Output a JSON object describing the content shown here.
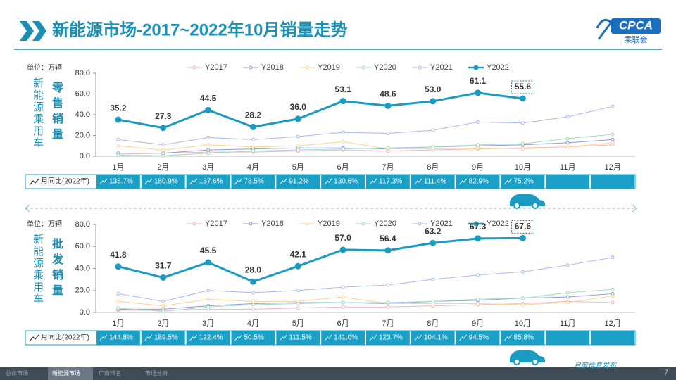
{
  "header": {
    "title": "新能源市场-2017~2022年10月销量走势",
    "logo": "CPCA",
    "logo_sub": "乘联会"
  },
  "chart_data": [
    {
      "type": "line",
      "unit": "单位：万辆",
      "side_label": "新能源乘用车",
      "y_label": "零售销量",
      "categories": [
        "1月",
        "2月",
        "3月",
        "4月",
        "5月",
        "6月",
        "7月",
        "8月",
        "9月",
        "10月",
        "11月",
        "12月"
      ],
      "ylim": [
        0,
        80
      ],
      "yticks": [
        {
          "value": 0,
          "label": "0.0"
        },
        {
          "value": 20,
          "label": "20.0"
        },
        {
          "value": 40,
          "label": "40.0"
        },
        {
          "value": 60,
          "label": "60.0"
        },
        {
          "value": 80,
          "label": "80.0"
        }
      ],
      "grid": false,
      "series": [
        {
          "name": "Y2017",
          "color": "#f2b3c3",
          "values": [
            2,
            3,
            4,
            4,
            5,
            6,
            5,
            6,
            7,
            8,
            9,
            11
          ]
        },
        {
          "name": "Y2018",
          "color": "#8f9ad6",
          "values": [
            3,
            3,
            6,
            7,
            8,
            8,
            7,
            9,
            10,
            11,
            13,
            16
          ]
        },
        {
          "name": "Y2019",
          "color": "#fbd38f",
          "values": [
            10,
            6,
            11,
            9,
            10,
            14,
            7,
            7,
            8,
            7,
            9,
            13
          ]
        },
        {
          "name": "Y2020",
          "color": "#9edcc2",
          "values": [
            1,
            0.5,
            3,
            5,
            6,
            7,
            8,
            9,
            11,
            12,
            17,
            21
          ]
        },
        {
          "name": "Y2021",
          "color": "#a9b9e9",
          "values": [
            16,
            11,
            18,
            16,
            19,
            23,
            22,
            25,
            33,
            32,
            38,
            48
          ]
        },
        {
          "name": "Y2022",
          "color": "#1b9bc1",
          "values": [
            35.2,
            27.3,
            44.5,
            28.2,
            36.0,
            53.1,
            48.6,
            53.0,
            61.1,
            55.6,
            null,
            null
          ],
          "value_labels": [
            "35.2",
            "27.3",
            "44.5",
            "28.2",
            "36.0",
            "53.1",
            "48.6",
            "53.0",
            "61.1",
            "55.6",
            null,
            null
          ]
        }
      ],
      "yoy": {
        "label": "月同比(2022年)",
        "values": [
          135.7,
          180.9,
          137.6,
          78.5,
          91.2,
          130.6,
          117.3,
          111.4,
          82.9,
          75.2,
          null,
          null
        ],
        "value_labels": [
          "135.7%",
          "180.9%",
          "137.6%",
          "78.5%",
          "91.2%",
          "130.6%",
          "117.3%",
          "111.4%",
          "82.9%",
          "75.2%",
          null,
          null
        ]
      }
    },
    {
      "type": "line",
      "unit": "单位：万辆",
      "side_label": "新能源乘用车",
      "y_label": "批发销量",
      "categories": [
        "1月",
        "2月",
        "3月",
        "4月",
        "5月",
        "6月",
        "7月",
        "8月",
        "9月",
        "10月",
        "11月",
        "12月"
      ],
      "ylim": [
        0,
        80
      ],
      "yticks": [
        {
          "value": 0,
          "label": "0.0"
        },
        {
          "value": 20,
          "label": "20.0"
        },
        {
          "value": 40,
          "label": "40.0"
        },
        {
          "value": 60,
          "label": "60.0"
        },
        {
          "value": 80,
          "label": "80.0"
        }
      ],
      "grid": false,
      "series": [
        {
          "name": "Y2017",
          "color": "#f2b3c3",
          "values": [
            2,
            2,
            3,
            3,
            4,
            5,
            5,
            6,
            7,
            8,
            10,
            9
          ]
        },
        {
          "name": "Y2018",
          "color": "#8f9ad6",
          "values": [
            3,
            3,
            6,
            8,
            9,
            9,
            8,
            10,
            11,
            13,
            14,
            17
          ]
        },
        {
          "name": "Y2019",
          "color": "#fbd38f",
          "values": [
            10,
            6,
            12,
            10,
            10,
            14,
            8,
            8,
            8,
            7,
            9,
            15
          ]
        },
        {
          "name": "Y2020",
          "color": "#9edcc2",
          "values": [
            4,
            1,
            5,
            7,
            8,
            9,
            9,
            10,
            12,
            13,
            18,
            21
          ]
        },
        {
          "name": "Y2021",
          "color": "#a9b9e9",
          "values": [
            17,
            10,
            20,
            18,
            20,
            23,
            25,
            30,
            34,
            37,
            43,
            50
          ]
        },
        {
          "name": "Y2022",
          "color": "#1b9bc1",
          "values": [
            41.8,
            31.7,
            45.5,
            28.0,
            42.1,
            57.0,
            56.4,
            63.2,
            67.3,
            67.6,
            null,
            null
          ],
          "value_labels": [
            "41.8",
            "31.7",
            "45.5",
            "28.0",
            "42.1",
            "57.0",
            "56.4",
            "63.2",
            "67.3",
            "67.6",
            null,
            null
          ]
        }
      ],
      "yoy": {
        "label": "月同比(2022年)",
        "values": [
          144.8,
          189.5,
          122.4,
          50.5,
          111.5,
          141.0,
          123.7,
          104.1,
          94.5,
          85.8,
          null,
          null
        ],
        "value_labels": [
          "144.8%",
          "189.5%",
          "122.4%",
          "50.5%",
          "111.5%",
          "141.0%",
          "123.7%",
          "104.1%",
          "94.5%",
          "85.8%",
          null,
          null
        ]
      }
    }
  ],
  "footer": {
    "tabs": [
      "总体市场",
      "新能源市场",
      "厂商排名",
      "市场分析"
    ],
    "publisher": "月度信息发布",
    "page": "7"
  }
}
